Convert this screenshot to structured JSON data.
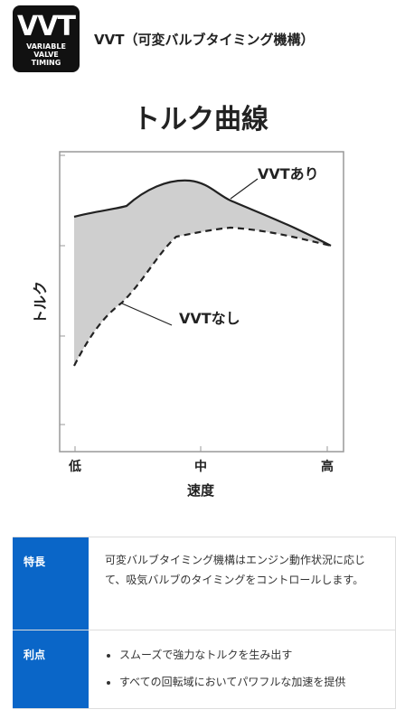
{
  "header": {
    "logo_lines": [
      "VVT",
      "VARIABLE VALVE",
      "TIMING"
    ],
    "title": "VVT（可変バルブタイミング機構）"
  },
  "chart": {
    "title": "トルク曲線",
    "y_label": "トルク",
    "x_label": "速度",
    "x_labels": [
      "低",
      "中",
      "高"
    ],
    "annotations": [
      "VVTあり",
      "VVTなし"
    ]
  },
  "table": {
    "rows": [
      {
        "label": "特長",
        "text": "可変バルブタイミング機構はエンジン動作状況に応じて、吸気バルブのタイミングをコントロールします。"
      },
      {
        "label": "利点",
        "items": [
          "スムーズで強力なトルクを生み出す",
          "すべての回転域においてパワフルな加速を提供"
        ]
      }
    ]
  }
}
